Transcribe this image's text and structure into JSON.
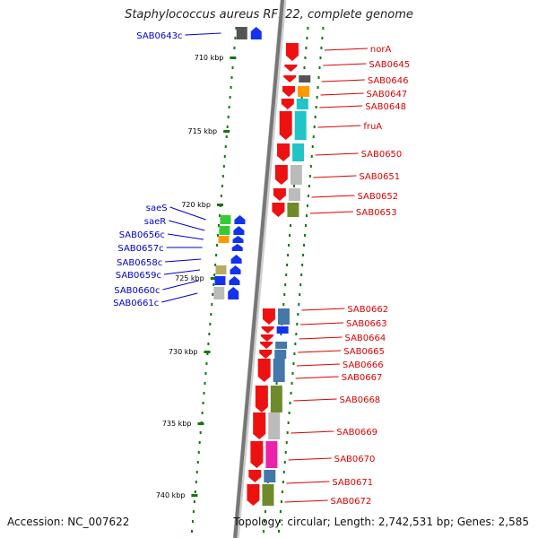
{
  "header": {
    "title": "Staphylococcus aureus RF122, complete genome"
  },
  "footer": {
    "accession": "Accession: NC_007622",
    "topology": "Topology: circular; Length: 2,742,531 bp; Genes: 2,585"
  },
  "colors": {
    "forward_gene": "#ee1111",
    "reverse_gene": "#1133ee",
    "forward_label": "#dd0000",
    "reverse_label": "#0000cc",
    "scale_tick": "#117711",
    "backbone": "#777777",
    "cog_cyan": "#22c4c8",
    "cog_grey": "#bbbbbb",
    "cog_olive": "#6f8a2a",
    "cog_pink": "#ee22aa",
    "cog_steel": "#4477aa",
    "cog_green": "#33cc33",
    "cog_orange": "#ff9900",
    "cog_tan": "#bbaa66",
    "cog_dark": "#555555"
  },
  "scale": {
    "ticks": [
      {
        "label": "710 kbp"
      },
      {
        "label": "715 kbp"
      },
      {
        "label": "720 kbp"
      },
      {
        "label": "725 kbp"
      },
      {
        "label": "730 kbp"
      },
      {
        "label": "735 kbp"
      },
      {
        "label": "740 kbp"
      }
    ]
  },
  "reverse_genes": [
    {
      "label": "SAB0643c",
      "cog": "cog_dark"
    },
    {
      "label": "saeS",
      "cog": "cog_green"
    },
    {
      "label": "saeR",
      "cog": "cog_green"
    },
    {
      "label": "SAB0656c",
      "cog": "cog_orange"
    },
    {
      "label": "SAB0657c",
      "cog": ""
    },
    {
      "label": "SAB0658c",
      "cog": ""
    },
    {
      "label": "SAB0659c",
      "cog": "cog_tan"
    },
    {
      "label": "SAB0660c",
      "cog": "reverse_gene"
    },
    {
      "label": "SAB0661c",
      "cog": "cog_grey"
    }
  ],
  "forward_genes": [
    {
      "label": "norA",
      "cog": ""
    },
    {
      "label": "SAB0645",
      "cog": ""
    },
    {
      "label": "SAB0646",
      "cog": "cog_dark"
    },
    {
      "label": "SAB0647",
      "cog": "cog_orange"
    },
    {
      "label": "SAB0648",
      "cog": "cog_cyan"
    },
    {
      "label": "fruA",
      "cog": "cog_cyan"
    },
    {
      "label": "SAB0650",
      "cog": "cog_cyan"
    },
    {
      "label": "SAB0651",
      "cog": "cog_grey"
    },
    {
      "label": "SAB0652",
      "cog": "cog_grey"
    },
    {
      "label": "SAB0653",
      "cog": "cog_olive"
    },
    {
      "label": "SAB0662",
      "cog": "cog_steel"
    },
    {
      "label": "SAB0663",
      "cog": "reverse_gene"
    },
    {
      "label": "SAB0664",
      "cog": ""
    },
    {
      "label": "SAB0665",
      "cog": "cog_steel"
    },
    {
      "label": "SAB0666",
      "cog": "cog_steel"
    },
    {
      "label": "SAB0667",
      "cog": "cog_steel"
    },
    {
      "label": "SAB0668",
      "cog": "cog_olive"
    },
    {
      "label": "SAB0669",
      "cog": "cog_grey"
    },
    {
      "label": "SAB0670",
      "cog": "cog_pink"
    },
    {
      "label": "SAB0671",
      "cog": "cog_steel"
    },
    {
      "label": "SAB0672",
      "cog": "cog_olive"
    }
  ]
}
